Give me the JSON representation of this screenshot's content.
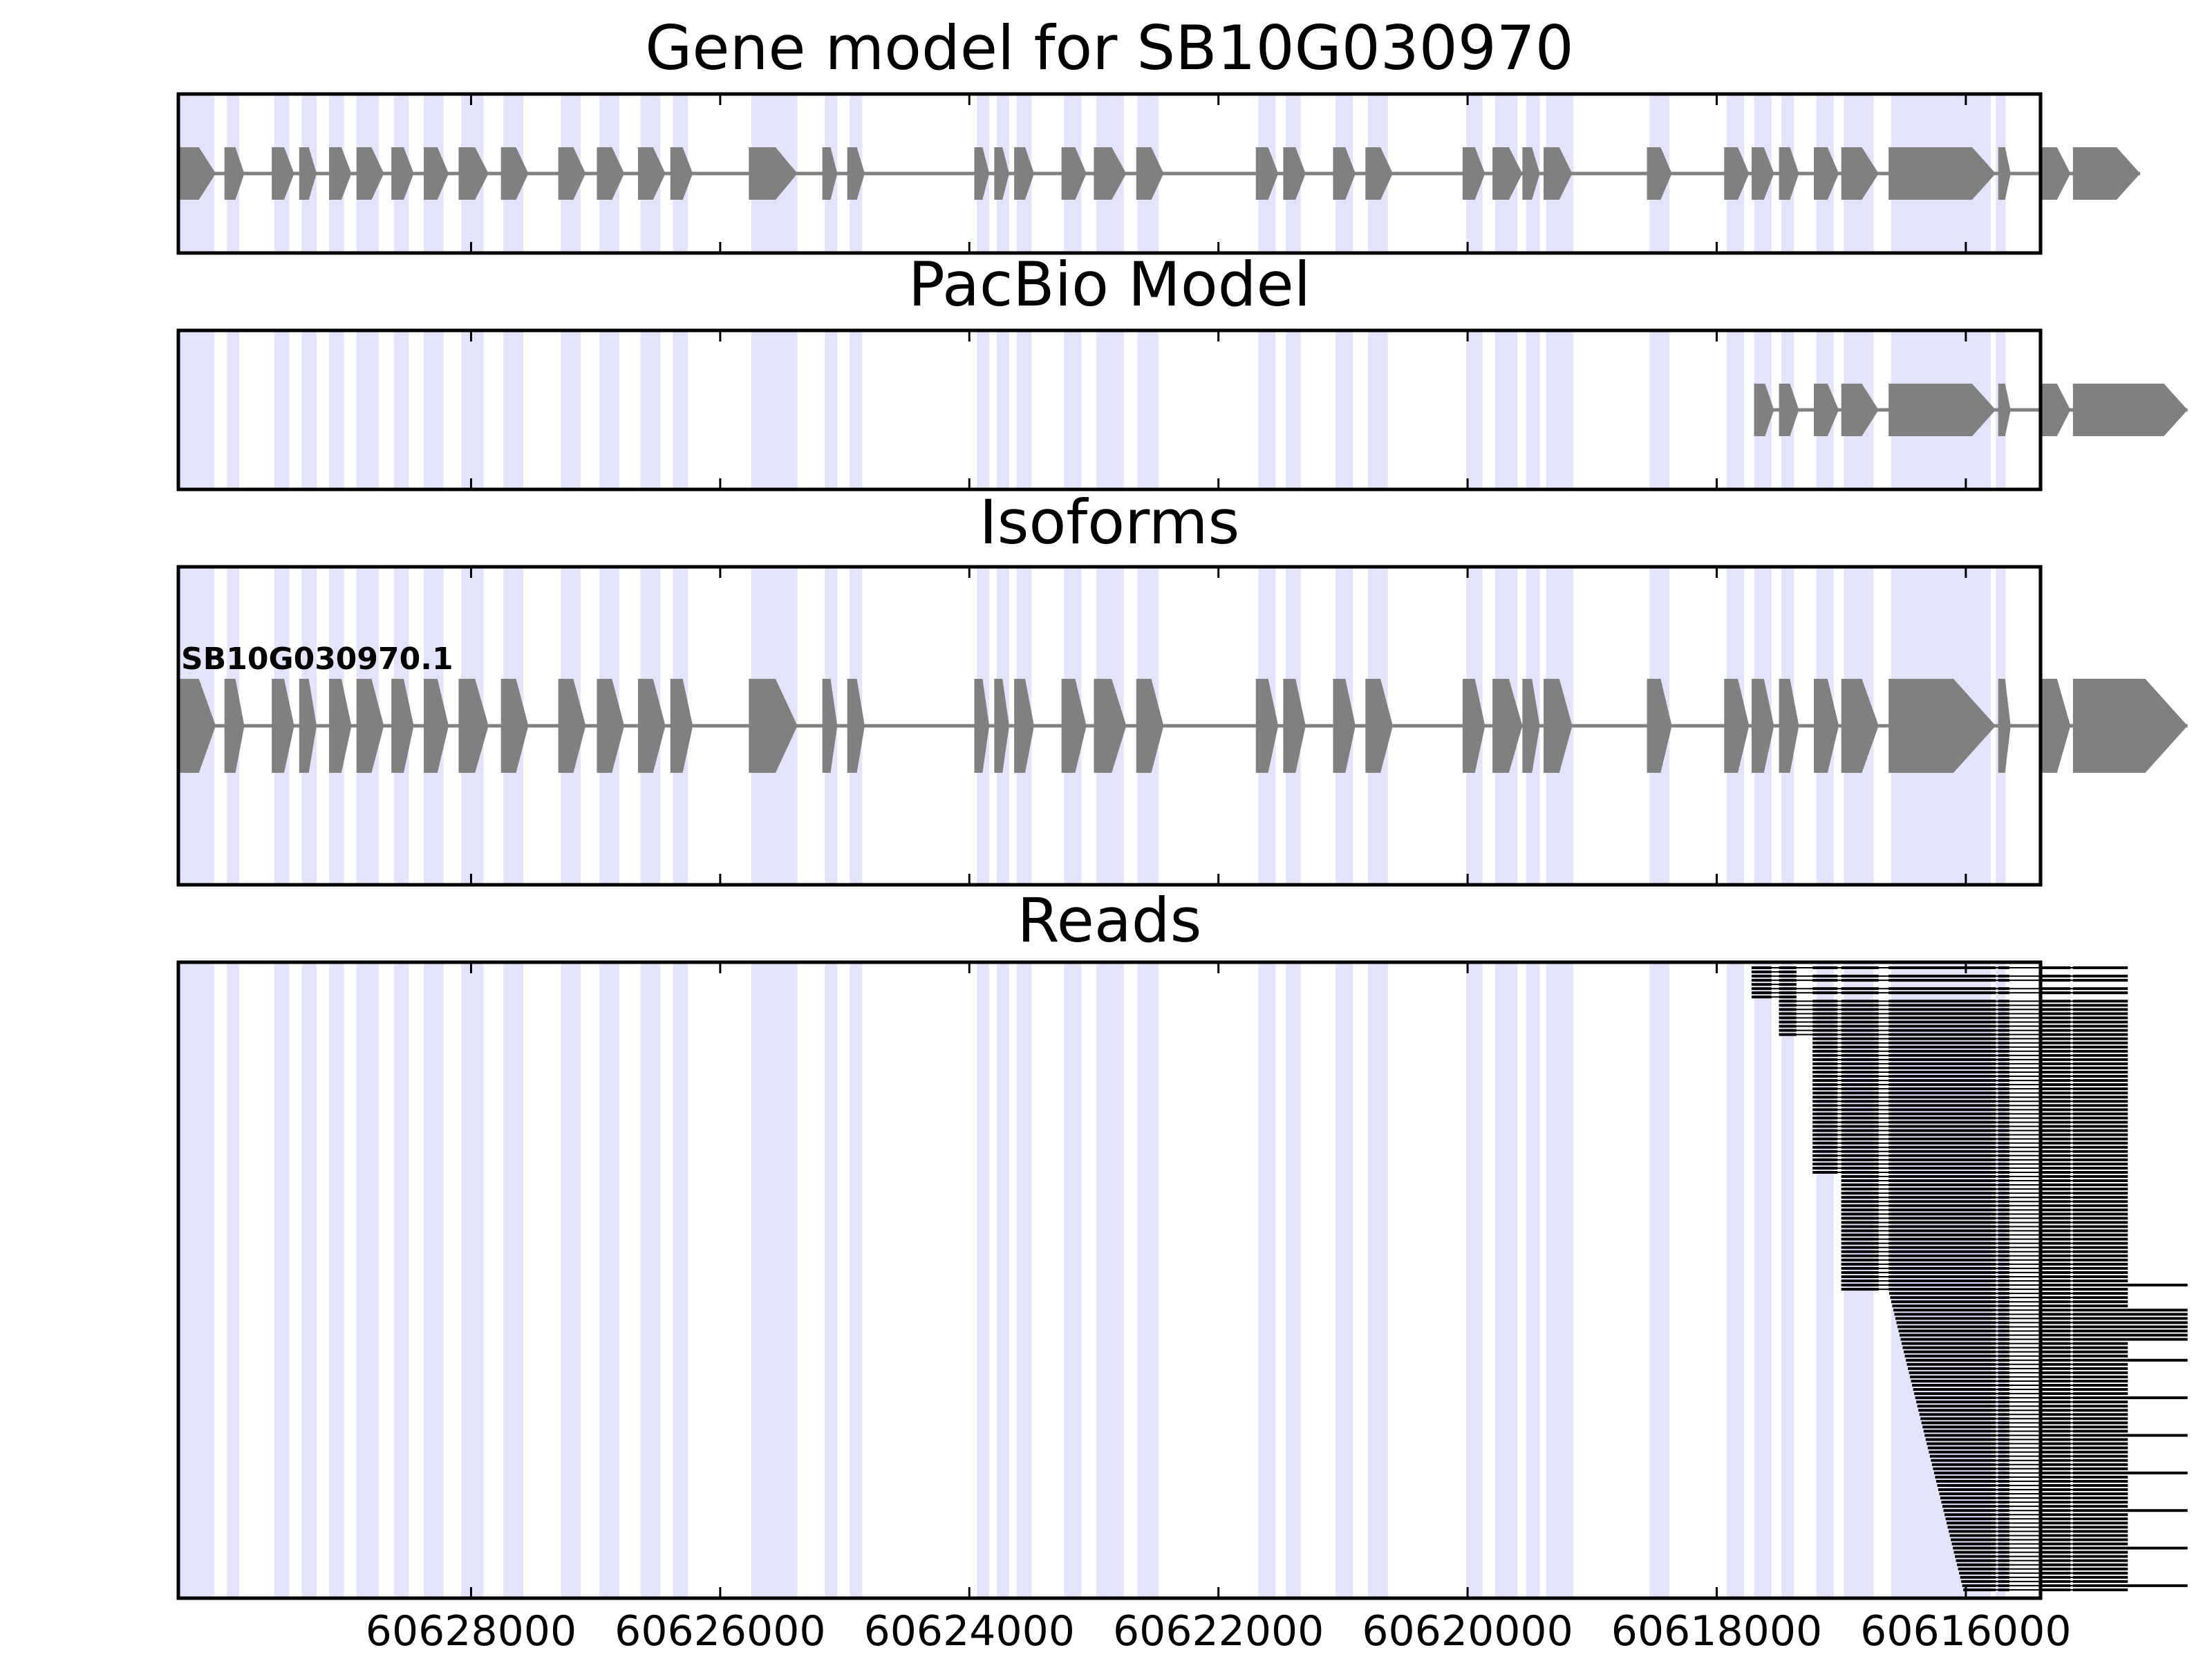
{
  "chart_data": {
    "type": "gene-track",
    "x_axis": {
      "reversed": true,
      "xlim": [
        60630350,
        60615400
      ],
      "ticks": [
        60628000,
        60626000,
        60624000,
        60622000,
        60620000,
        60618000,
        60616000
      ],
      "tick_labels": [
        "60628000",
        "60626000",
        "60624000",
        "60622000",
        "60620000",
        "60618000",
        "60616000"
      ]
    },
    "colors": {
      "exon": "#808080",
      "intron_line": "#808080",
      "shade": "#e3e3fb",
      "read": "#000000",
      "frame": "#000000"
    },
    "exon_shading": [
      [
        60630350,
        60630060
      ],
      [
        60629960,
        60629860
      ],
      [
        60629580,
        60629460
      ],
      [
        60629360,
        60629240
      ],
      [
        60629140,
        60629020
      ],
      [
        60628920,
        60628740
      ],
      [
        60628620,
        60628500
      ],
      [
        60628380,
        60628220
      ],
      [
        60628080,
        60627900
      ],
      [
        60627740,
        60627580
      ],
      [
        60627280,
        60627120
      ],
      [
        60626970,
        60626810
      ],
      [
        60626640,
        60626480
      ],
      [
        60626380,
        60626260
      ],
      [
        60625750,
        60625380
      ],
      [
        60625160,
        60625060
      ],
      [
        60624960,
        60624860
      ],
      [
        60623940,
        60623840
      ],
      [
        60623780,
        60623680
      ],
      [
        60623620,
        60623500
      ],
      [
        60623240,
        60623100
      ],
      [
        60622980,
        60622760
      ],
      [
        60622650,
        60622480
      ],
      [
        60621680,
        60621540
      ],
      [
        60621460,
        60621340
      ],
      [
        60621060,
        60620920
      ],
      [
        60620800,
        60620640
      ],
      [
        60620010,
        60619880
      ],
      [
        60619780,
        60619600
      ],
      [
        60619530,
        60619420
      ],
      [
        60619370,
        60619150
      ],
      [
        60618540,
        60618380
      ],
      [
        60617920,
        60617780
      ],
      [
        60617700,
        60617560
      ],
      [
        60617480,
        60617380
      ],
      [
        60617200,
        60617060
      ],
      [
        60616980,
        60616740
      ],
      [
        60616600,
        60615800
      ],
      [
        60615760,
        60615680
      ],
      [
        60615420,
        60615260
      ],
      [
        60615160,
        60614660
      ]
    ],
    "panels": [
      {
        "title": "Gene model for SB10G030970",
        "isoforms": [
          {
            "label": "",
            "exons": [
              [
                60630350,
                60630050
              ],
              [
                60629980,
                60629820
              ],
              [
                60629600,
                60629420
              ],
              [
                60629380,
                60629240
              ],
              [
                60629140,
                60628960
              ],
              [
                60628920,
                60628700
              ],
              [
                60628640,
                60628460
              ],
              [
                60628380,
                60628180
              ],
              [
                60628100,
                60627860
              ],
              [
                60627760,
                60627540
              ],
              [
                60627300,
                60627080
              ],
              [
                60626990,
                60626770
              ],
              [
                60626660,
                60626440
              ],
              [
                60626400,
                60626220
              ],
              [
                60625770,
                60625380
              ],
              [
                60625180,
                60625060
              ],
              [
                60624980,
                60624840
              ],
              [
                60623960,
                60623840
              ],
              [
                60623800,
                60623680
              ],
              [
                60623640,
                60623480
              ],
              [
                60623260,
                60623060
              ],
              [
                60623000,
                60622740
              ],
              [
                60622660,
                60622440
              ],
              [
                60621700,
                60621520
              ],
              [
                60621480,
                60621300
              ],
              [
                60621080,
                60620900
              ],
              [
                60620820,
                60620600
              ],
              [
                60620040,
                60619860
              ],
              [
                60619800,
                60619560
              ],
              [
                60619560,
                60619420
              ],
              [
                60619390,
                60619160
              ],
              [
                60618560,
                60618360
              ],
              [
                60617940,
                60617740
              ],
              [
                60617720,
                60617540
              ],
              [
                60617500,
                60617340
              ],
              [
                60617220,
                60617020
              ],
              [
                60617000,
                60616700
              ],
              [
                60616620,
                60615760
              ],
              [
                60615740,
                60615640
              ],
              [
                60615400,
                60615160
              ],
              [
                60615140,
                60614600
              ]
            ]
          }
        ]
      },
      {
        "title": "PacBio Model",
        "isoforms": [
          {
            "label": "",
            "exons": [
              [
                60617700,
                60617540
              ],
              [
                60617500,
                60617340
              ],
              [
                60617220,
                60617020
              ],
              [
                60617000,
                60616700
              ],
              [
                60616620,
                60615760
              ],
              [
                60615740,
                60615640
              ],
              [
                60615400,
                60615160
              ],
              [
                60615140,
                60614220
              ]
            ]
          }
        ]
      },
      {
        "title": "Isoforms",
        "isoforms": [
          {
            "label": "SB10G030970.1",
            "exons": [
              [
                60630350,
                60630050
              ],
              [
                60629980,
                60629820
              ],
              [
                60629600,
                60629420
              ],
              [
                60629380,
                60629240
              ],
              [
                60629140,
                60628960
              ],
              [
                60628920,
                60628700
              ],
              [
                60628640,
                60628460
              ],
              [
                60628380,
                60628180
              ],
              [
                60628100,
                60627860
              ],
              [
                60627760,
                60627540
              ],
              [
                60627300,
                60627080
              ],
              [
                60626990,
                60626770
              ],
              [
                60626660,
                60626440
              ],
              [
                60626400,
                60626220
              ],
              [
                60625770,
                60625380
              ],
              [
                60625180,
                60625060
              ],
              [
                60624980,
                60624840
              ],
              [
                60623960,
                60623840
              ],
              [
                60623800,
                60623680
              ],
              [
                60623640,
                60623480
              ],
              [
                60623260,
                60623060
              ],
              [
                60623000,
                60622740
              ],
              [
                60622660,
                60622440
              ],
              [
                60621700,
                60621520
              ],
              [
                60621480,
                60621300
              ],
              [
                60621080,
                60620900
              ],
              [
                60620820,
                60620600
              ],
              [
                60620040,
                60619860
              ],
              [
                60619800,
                60619560
              ],
              [
                60619560,
                60619420
              ],
              [
                60619390,
                60619160
              ],
              [
                60618560,
                60618360
              ],
              [
                60617940,
                60617740
              ],
              [
                60617720,
                60617540
              ],
              [
                60617500,
                60617340
              ],
              [
                60617220,
                60617020
              ],
              [
                60617000,
                60616700
              ],
              [
                60616620,
                60615760
              ],
              [
                60615740,
                60615640
              ],
              [
                60615400,
                60615160
              ],
              [
                60615140,
                60614220
              ]
            ]
          }
        ]
      },
      {
        "title": "Reads",
        "read_count": 150,
        "read_exons": [
          [
            60617720,
            60617560
          ],
          [
            60617500,
            60617360
          ],
          [
            60617230,
            60617030
          ],
          [
            60617000,
            60616700
          ],
          [
            60616620,
            60615760
          ],
          [
            60615740,
            60615650
          ],
          [
            60615400,
            60615160
          ],
          [
            60615140,
            60614700
          ]
        ],
        "reads_tail_extended": [
          60614460,
          60614220
        ]
      }
    ]
  }
}
